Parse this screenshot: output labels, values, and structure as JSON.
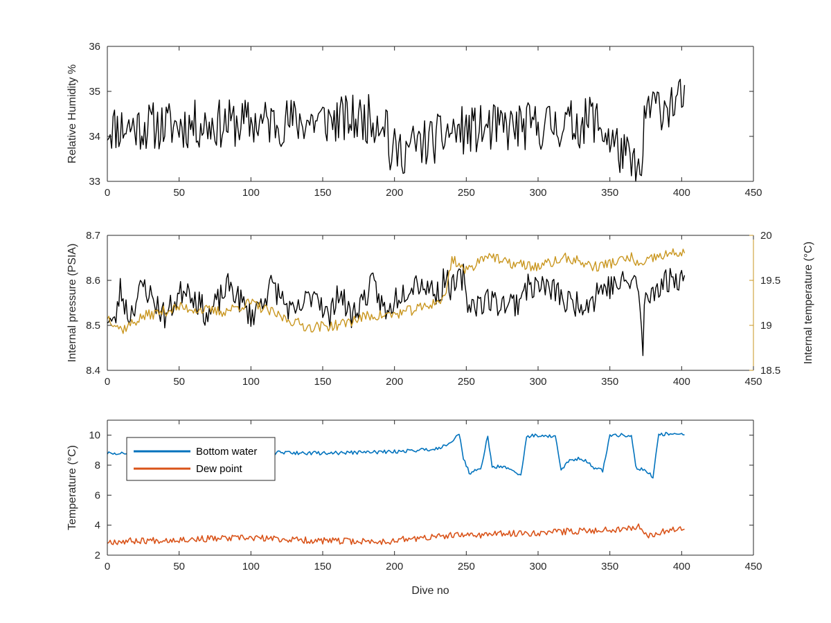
{
  "colors": {
    "rh": "#000000",
    "pressure": "#000000",
    "temperature": "#C9961F",
    "bottom_water": "#0072BD",
    "dew_point": "#D95319",
    "axis": "#262626"
  },
  "chart_data": [
    {
      "type": "line",
      "xlabel": "",
      "ylabel": "Relative Humidity %",
      "xlim": [
        0,
        450
      ],
      "ylim": [
        33,
        36
      ],
      "xticks": [
        0,
        50,
        100,
        150,
        200,
        250,
        300,
        350,
        400,
        450
      ],
      "yticks": [
        33,
        34,
        35,
        36
      ],
      "grid": false,
      "series": [
        {
          "color": "#000000",
          "x": [
            0,
            195,
            196,
            235,
            236,
            335,
            336,
            373,
            374,
            402
          ],
          "y": [
            34.2,
            34.4,
            33.6,
            34.0,
            34.1,
            34.3,
            34.5,
            33.05,
            34.6,
            34.8
          ],
          "noise": {
            "seed": 11,
            "amplitude": 0.55,
            "step": 1
          }
        }
      ]
    },
    {
      "type": "line",
      "xlabel": "",
      "ylabel": "Internal pressure (PSIA)",
      "y2label": "Internal temperature (°C)",
      "xlim": [
        0,
        450
      ],
      "ylim": [
        8.4,
        8.7
      ],
      "y2lim": [
        18.5,
        20
      ],
      "xticks": [
        0,
        50,
        100,
        150,
        200,
        250,
        300,
        350,
        400,
        450
      ],
      "yticks": [
        8.4,
        8.5,
        8.6,
        8.7
      ],
      "y2ticks": [
        18.5,
        19,
        19.5,
        20
      ],
      "grid": false,
      "series": [
        {
          "axis": "left",
          "color": "#000000",
          "x": [
            0,
            5,
            9,
            15,
            25,
            40,
            55,
            70,
            85,
            100,
            115,
            130,
            145,
            155,
            160,
            170,
            185,
            195,
            200,
            215,
            232,
            235,
            240,
            248,
            250,
            260,
            265,
            270,
            287,
            288,
            300,
            316,
            317,
            330,
            340,
            341,
            355,
            368,
            371,
            373,
            374,
            376,
            380,
            390,
            402
          ],
          "y": [
            8.52,
            8.5,
            8.58,
            8.52,
            8.59,
            8.52,
            8.59,
            8.52,
            8.59,
            8.52,
            8.59,
            8.52,
            8.58,
            8.51,
            8.58,
            8.52,
            8.59,
            8.52,
            8.56,
            8.6,
            8.57,
            8.61,
            8.58,
            8.61,
            8.55,
            8.55,
            8.56,
            8.55,
            8.55,
            8.58,
            8.59,
            8.57,
            8.55,
            8.55,
            8.56,
            8.58,
            8.59,
            8.6,
            8.55,
            8.42,
            8.56,
            8.55,
            8.58,
            8.6,
            8.61
          ],
          "noise": {
            "seed": 23,
            "amplitude": 0.03,
            "step": 1
          }
        },
        {
          "axis": "right",
          "color": "#C9961F",
          "x": [
            0,
            10,
            25,
            50,
            80,
            100,
            120,
            140,
            160,
            180,
            200,
            220,
            235,
            240,
            250,
            265,
            275,
            300,
            320,
            340,
            365,
            372,
            380,
            402
          ],
          "y": [
            19.1,
            18.95,
            19.1,
            19.2,
            19.15,
            19.25,
            19.1,
            18.98,
            19.0,
            19.1,
            19.12,
            19.2,
            19.3,
            19.75,
            19.6,
            19.8,
            19.7,
            19.65,
            19.75,
            19.65,
            19.75,
            19.65,
            19.75,
            19.82
          ],
          "noise": {
            "seed": 37,
            "amplitude": 0.06,
            "step": 1
          }
        }
      ]
    },
    {
      "type": "line",
      "xlabel": "Dive no",
      "ylabel": "Temperature (°C)",
      "xlim": [
        0,
        450
      ],
      "ylim": [
        2,
        11
      ],
      "xticks": [
        0,
        50,
        100,
        150,
        200,
        250,
        300,
        350,
        400,
        450
      ],
      "yticks": [
        2,
        4,
        6,
        8,
        10
      ],
      "grid": false,
      "legend": "top-left",
      "series": [
        {
          "name": "Bottom water",
          "color": "#0072BD",
          "x": [
            0,
            5,
            50,
            100,
            150,
            200,
            230,
            240,
            245,
            248,
            252,
            260,
            265,
            268,
            272,
            280,
            288,
            292,
            300,
            312,
            316,
            322,
            330,
            338,
            345,
            350,
            365,
            368,
            372,
            378,
            380,
            384,
            390,
            402
          ],
          "y": [
            8.8,
            8.75,
            8.85,
            8.85,
            8.8,
            8.9,
            9.1,
            9.6,
            10.1,
            8.5,
            7.5,
            7.7,
            10.0,
            7.8,
            7.9,
            7.8,
            7.3,
            9.9,
            10.0,
            9.9,
            7.7,
            8.3,
            8.5,
            7.9,
            7.6,
            10.0,
            10.0,
            7.9,
            7.7,
            7.5,
            7.1,
            10.0,
            10.1,
            10.1
          ],
          "noise": {
            "seed": 51,
            "amplitude": 0.12,
            "step": 1
          }
        },
        {
          "name": "Dew point",
          "color": "#D95319",
          "x": [
            0,
            50,
            100,
            150,
            195,
            200,
            240,
            300,
            350,
            372,
            374,
            402
          ],
          "y": [
            2.9,
            3.05,
            3.15,
            2.95,
            2.9,
            3.0,
            3.3,
            3.5,
            3.7,
            3.9,
            3.3,
            3.9
          ],
          "noise": {
            "seed": 67,
            "amplitude": 0.22,
            "step": 1
          }
        }
      ]
    }
  ]
}
